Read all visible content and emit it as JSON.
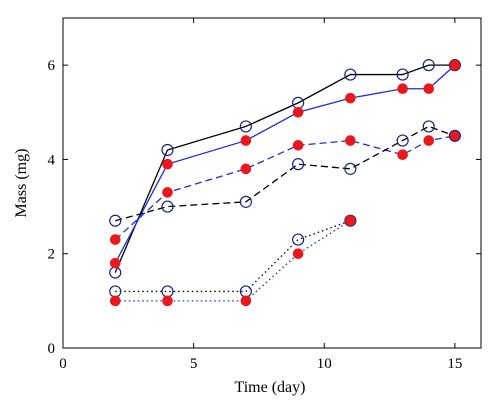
{
  "chart_data": {
    "type": "line",
    "title": "",
    "xlabel": "Time (day)",
    "ylabel": "Mass (mg)",
    "xlim": [
      0,
      16
    ],
    "ylim": [
      0,
      7
    ],
    "xticks": [
      0,
      5,
      10,
      15
    ],
    "yticks": [
      0,
      2,
      4,
      6
    ],
    "grid": false,
    "legend": "none",
    "series": [
      {
        "line_style": "solid",
        "color": "#000000",
        "marker": "open-circle",
        "marker_color": "#1a237e",
        "x": [
          2,
          4,
          7,
          9,
          11,
          13,
          14,
          15
        ],
        "y": [
          1.6,
          4.2,
          4.7,
          5.2,
          5.8,
          5.8,
          6.0,
          6.0
        ]
      },
      {
        "line_style": "solid",
        "color": "#1f2fd0",
        "marker": "filled-circle",
        "marker_color": "#e8191c",
        "x": [
          2,
          4,
          7,
          9,
          11,
          13,
          14,
          15
        ],
        "y": [
          1.8,
          3.9,
          4.4,
          5.0,
          5.3,
          5.5,
          5.5,
          6.0
        ]
      },
      {
        "line_style": "dashed",
        "color": "#1f2fd0",
        "marker": "filled-circle",
        "marker_color": "#e8191c",
        "x": [
          2,
          4,
          7,
          9,
          11,
          13,
          14,
          15
        ],
        "y": [
          2.3,
          3.3,
          3.8,
          4.3,
          4.4,
          4.1,
          4.4,
          4.5
        ]
      },
      {
        "line_style": "dashed",
        "color": "#000000",
        "marker": "open-circle",
        "marker_color": "#1a237e",
        "x": [
          2,
          4,
          7,
          9,
          11,
          13,
          14,
          15
        ],
        "y": [
          2.7,
          3.0,
          3.1,
          3.9,
          3.8,
          4.4,
          4.7,
          4.5
        ]
      },
      {
        "line_style": "dotted",
        "color": "#000000",
        "marker": "open-circle",
        "marker_color": "#1a237e",
        "x": [
          2,
          4,
          7,
          9,
          11
        ],
        "y": [
          1.2,
          1.2,
          1.2,
          2.3,
          2.7
        ]
      },
      {
        "line_style": "dotted",
        "color": "#1f2fd0",
        "marker": "filled-circle",
        "marker_color": "#e8191c",
        "x": [
          2,
          4,
          7,
          9,
          11
        ],
        "y": [
          1.0,
          1.0,
          1.0,
          2.0,
          2.7
        ]
      }
    ]
  }
}
